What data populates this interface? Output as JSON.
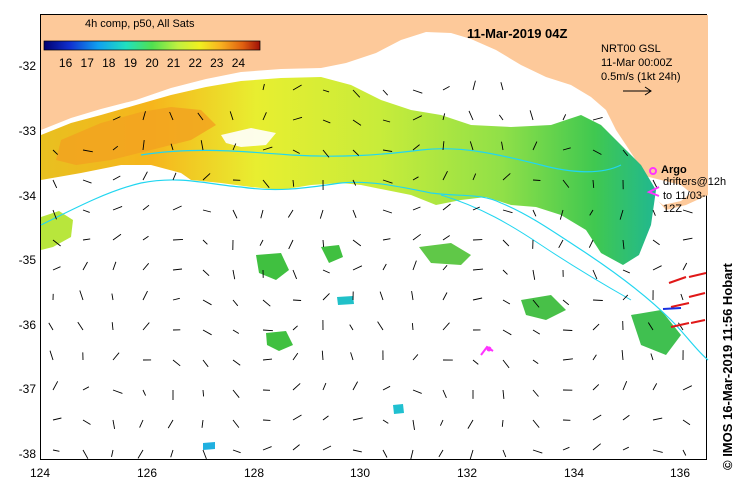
{
  "map": {
    "composite_label": "4h comp, p50, All Sats",
    "date_title": "11-Mar-2019 04Z",
    "colorbar": {
      "min": 15,
      "max": 25,
      "tick_labels": [
        "16",
        "17",
        "18",
        "19",
        "20",
        "21",
        "22",
        "23",
        "24"
      ]
    },
    "current_legend": {
      "line1": "NRT00 GSL",
      "line2": "11-Mar 00:00Z",
      "line3": "0.5m/s (1kt 24h)"
    },
    "argo_legend": {
      "argo_label": "Argo",
      "drifter_line1": "drifters@12h",
      "drifter_line2": "to 11/03-12Z"
    },
    "axes": {
      "x_range": [
        124,
        136.5
      ],
      "y_range": [
        -38.1,
        -31.3
      ],
      "x_tick_labels": [
        "124",
        "126",
        "128",
        "130",
        "132",
        "134",
        "136"
      ],
      "y_tick_labels": [
        "-32",
        "-33",
        "-34",
        "-35",
        "-36",
        "-37",
        "-38"
      ]
    },
    "credit": "© IMOS 16-Mar-2019 11:56 Hobart",
    "colors": {
      "land": "#fdc99a",
      "ocean_nodata": "#ffffff",
      "altimetry_contour": "#22d6f0",
      "argo": "#ff33ff",
      "drifters": "#e01818"
    }
  }
}
